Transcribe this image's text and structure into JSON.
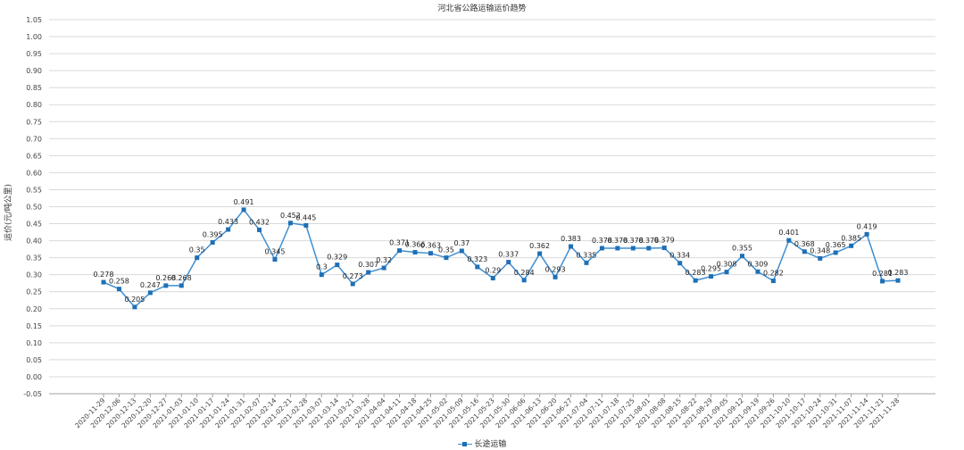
{
  "chart_data": {
    "type": "line",
    "title": "河北省公路运输运价趋势",
    "xlabel": "",
    "ylabel": "运价(元/吨公里)",
    "ylim": [
      -0.05,
      1.05
    ],
    "ytick_step": 0.05,
    "yticks": [
      "-0.05",
      "0.00",
      "0.05",
      "0.10",
      "0.15",
      "0.20",
      "0.25",
      "0.30",
      "0.35",
      "0.40",
      "0.45",
      "0.50",
      "0.55",
      "0.60",
      "0.65",
      "0.70",
      "0.75",
      "0.80",
      "0.85",
      "0.90",
      "0.95",
      "1.00",
      "1.05"
    ],
    "grid": true,
    "legend_position": "bottom",
    "colors": {
      "line": "#3f8fd2",
      "marker": "#1f6fb5",
      "grid": "#d9d9d9",
      "axis": "#a0a0a0"
    },
    "categories": [
      "2020-11-29",
      "2020-12-06",
      "2020-12-13",
      "2020-12-20",
      "2020-12-27",
      "2021-01-03",
      "2021-01-10",
      "2021-01-17",
      "2021-01-24",
      "2021-01-31",
      "2021-02-07",
      "2021-02-14",
      "2021-02-21",
      "2021-02-28",
      "2021-03-07",
      "2021-03-14",
      "2021-03-21",
      "2021-03-28",
      "2021-04-04",
      "2021-04-11",
      "2021-04-18",
      "2021-04-25",
      "2021-05-02",
      "2021-05-09",
      "2021-05-16",
      "2021-05-23",
      "2021-05-30",
      "2021-06-06",
      "2021-06-13",
      "2021-06-20",
      "2021-06-27",
      "2021-07-04",
      "2021-07-11",
      "2021-07-18",
      "2021-07-25",
      "2021-08-01",
      "2021-08-08",
      "2021-08-15",
      "2021-08-22",
      "2021-08-29",
      "2021-09-05",
      "2021-09-12",
      "2021-09-19",
      "2021-09-26",
      "2021-10-10",
      "2021-10-17",
      "2021-10-24",
      "2021-10-31",
      "2021-11-07",
      "2021-11-14",
      "2021-11-21",
      "2021-11-28"
    ],
    "series": [
      {
        "name": "长途运输",
        "values": [
          0.278,
          0.258,
          0.205,
          0.247,
          0.268,
          0.268,
          0.35,
          0.395,
          0.433,
          0.491,
          0.432,
          0.345,
          0.452,
          0.445,
          0.3,
          0.329,
          0.273,
          0.307,
          0.32,
          0.371,
          0.366,
          0.363,
          0.35,
          0.37,
          0.323,
          0.29,
          0.337,
          0.284,
          0.362,
          0.293,
          0.383,
          0.335,
          0.378,
          0.378,
          0.378,
          0.378,
          0.379,
          0.334,
          0.283,
          0.295,
          0.308,
          0.355,
          0.309,
          0.282,
          0.401,
          0.368,
          0.348,
          0.365,
          0.385,
          0.419,
          0.281,
          0.283
        ],
        "labels": [
          "0.278",
          "0.258",
          "0.205",
          "0.247",
          "0.268",
          "0.268",
          "0.35",
          "0.395",
          "0.433",
          "0.491",
          "0.432",
          "0.345",
          "0.452",
          "0.445",
          "0.3",
          "0.329",
          "0.273",
          "0.307",
          "0.32",
          "0.371",
          "0.366",
          "0.363",
          "0.35",
          "0.37",
          "0.323",
          "0.29",
          "0.337",
          "0.284",
          "0.362",
          "0.293",
          "0.383",
          "0.335",
          "0.378",
          "0.378",
          "0.378",
          "0.378",
          "0.379",
          "0.334",
          "0.283",
          "0.295",
          "0.308",
          "0.355",
          "0.309",
          "0.282",
          "0.401",
          "0.368",
          "0.348",
          "0.365",
          "0.385",
          "0.419",
          "0.281",
          "0.283"
        ]
      }
    ]
  }
}
